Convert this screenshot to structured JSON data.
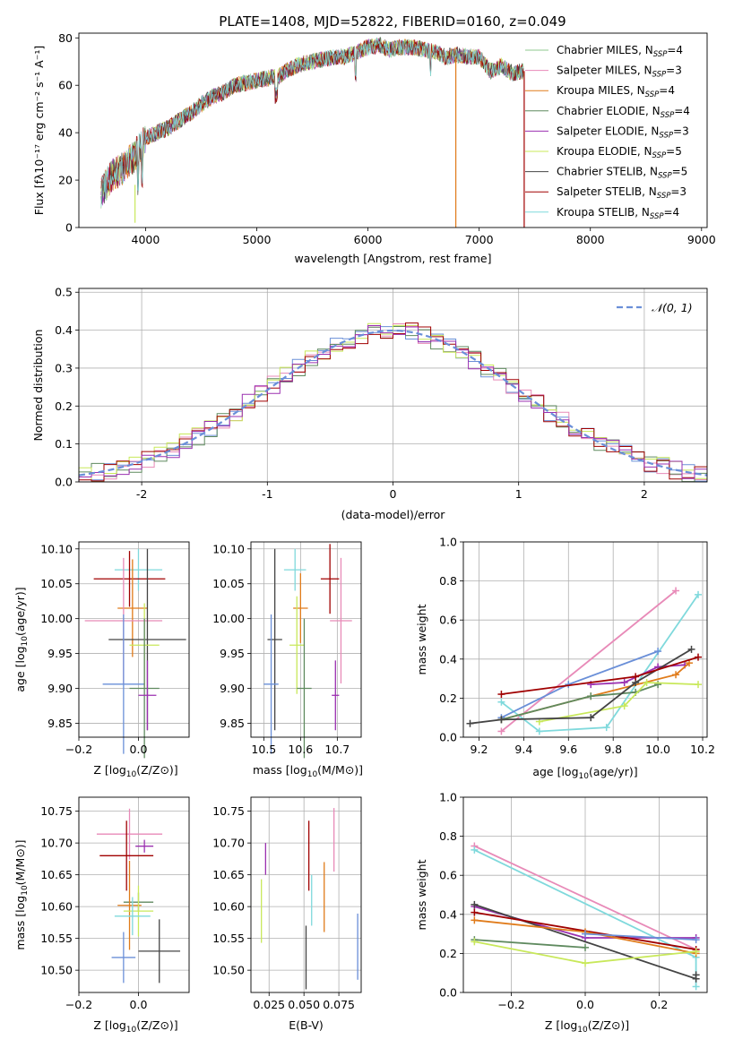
{
  "figure": {
    "title": "PLATE=1408, MJD=52822, FIBERID=0160, z=0.049",
    "series_colors": [
      "#8fc98f",
      "#e88ab8",
      "#e07b1a",
      "#5f8a5f",
      "#9b30b0",
      "#c8e85a",
      "#444444",
      "#a00000",
      "#7fd9dc",
      "#6a8fd8"
    ]
  },
  "chart_data": [
    {
      "id": "spectrum",
      "type": "line",
      "title": "PLATE=1408, MJD=52822, FIBERID=0160, z=0.049",
      "xlabel": "wavelength [Angstrom, rest frame]",
      "ylabel": "Flux [fλ10⁻¹⁷ erg cm⁻² s⁻¹ A⁻¹]",
      "xlim": [
        3400,
        9050
      ],
      "ylim": [
        0,
        82
      ],
      "xticks": [
        4000,
        5000,
        6000,
        7000,
        8000,
        9000
      ],
      "yticks": [
        0,
        20,
        40,
        60,
        80
      ],
      "grid": false,
      "legend_position": "top-right",
      "x": [
        3600,
        3700,
        3800,
        3900,
        4000,
        4100,
        4200,
        4300,
        4400,
        4500,
        4600,
        4700,
        4800,
        4900,
        5000,
        5100,
        5200,
        5300,
        5400,
        5500,
        5600,
        5700,
        5800,
        5900,
        6000,
        6100,
        6200,
        6300,
        6400,
        6500,
        6600,
        6700,
        6800,
        6900,
        7000,
        7100,
        7200,
        7300,
        7400
      ],
      "values": [
        15,
        22,
        25,
        30,
        38,
        40,
        42,
        45,
        48,
        52,
        55,
        57,
        60,
        61,
        62,
        63,
        64,
        67,
        69,
        70,
        71,
        72,
        72,
        74,
        76,
        77,
        75,
        76,
        76,
        75,
        74,
        72,
        73,
        72,
        72,
        66,
        68,
        65,
        66
      ],
      "series": [
        {
          "name": "Chabrier MILES, N_SSP=4",
          "label_main": "Chabrier MILES, N",
          "label_sub": "SSP",
          "label_tail": "=4",
          "color": "#8fc98f"
        },
        {
          "name": "Salpeter MILES, N_SSP=3",
          "label_main": "Salpeter MILES, N",
          "label_sub": "SSP",
          "label_tail": "=3",
          "color": "#e88ab8"
        },
        {
          "name": "Kroupa MILES, N_SSP=4",
          "label_main": "Kroupa MILES, N",
          "label_sub": "SSP",
          "label_tail": "=4",
          "color": "#e07b1a"
        },
        {
          "name": "Chabrier ELODIE, N_SSP=4",
          "label_main": "Chabrier ELODIE, N",
          "label_sub": "SSP",
          "label_tail": "=4",
          "color": "#5f8a5f"
        },
        {
          "name": "Salpeter ELODIE, N_SSP=3",
          "label_main": "Salpeter ELODIE, N",
          "label_sub": "SSP",
          "label_tail": "=3",
          "color": "#9b30b0"
        },
        {
          "name": "Kroupa ELODIE, N_SSP=5",
          "label_main": "Kroupa ELODIE, N",
          "label_sub": "SSP",
          "label_tail": "=5",
          "color": "#c8e85a"
        },
        {
          "name": "Chabrier STELIB, N_SSP=5",
          "label_main": "Chabrier STELIB, N",
          "label_sub": "SSP",
          "label_tail": "=5",
          "color": "#444444"
        },
        {
          "name": "Salpeter STELIB, N_SSP=3",
          "label_main": "Salpeter STELIB, N",
          "label_sub": "SSP",
          "label_tail": "=3",
          "color": "#a00000"
        },
        {
          "name": "Kroupa STELIB, N_SSP=4",
          "label_main": "Kroupa STELIB, N",
          "label_sub": "SSP",
          "label_tail": "=4",
          "color": "#7fd9dc"
        }
      ]
    },
    {
      "id": "residuals",
      "type": "area",
      "xlabel": "(data-model)/error",
      "ylabel": "Normed distribution",
      "xlim": [
        -2.5,
        2.5
      ],
      "ylim": [
        0,
        0.51
      ],
      "xticks": [
        -2,
        -1,
        0,
        1,
        2
      ],
      "yticks": [
        0.0,
        0.1,
        0.2,
        0.3,
        0.4,
        0.5
      ],
      "grid": true,
      "legend_position": "top-right",
      "reference": {
        "name": "N(0,1)",
        "label": "𝒩(0, 1)",
        "mean": 0,
        "sigma": 1,
        "color": "#6a8fd8"
      },
      "bin_width": 0.1,
      "series_colors": [
        "#6a8fd8",
        "#e88ab8",
        "#5f8a5f",
        "#c8e85a",
        "#a00000",
        "#9b30b0"
      ]
    },
    {
      "id": "age-vs-Z",
      "type": "scatter",
      "xlabel": "Z [log10(Z/Z⊙)]",
      "ylabel": "age [log10(age/yr)]",
      "xlim": [
        -0.2,
        0.17
      ],
      "ylim": [
        9.83,
        10.11
      ],
      "xticks": [
        -0.2,
        0.0
      ],
      "yticks": [
        9.85,
        9.9,
        9.95,
        10.0,
        10.05,
        10.1
      ],
      "grid": true,
      "points": [
        {
          "x": 0.0,
          "y": 10.07,
          "xerr": 0.08,
          "yerr": 0.03,
          "color": "#7fd9dc"
        },
        {
          "x": -0.03,
          "y": 10.057,
          "xerr": 0.12,
          "yerr": 0.04,
          "color": "#a00000"
        },
        {
          "x": -0.02,
          "y": 10.015,
          "xerr": 0.05,
          "yerr": 0.07,
          "color": "#e07b1a"
        },
        {
          "x": -0.05,
          "y": 9.997,
          "xerr": 0.13,
          "yerr": 0.09,
          "color": "#e88ab8"
        },
        {
          "x": 0.03,
          "y": 9.97,
          "xerr": 0.13,
          "yerr": 0.13,
          "color": "#444444"
        },
        {
          "x": 0.02,
          "y": 9.962,
          "xerr": 0.05,
          "yerr": 0.06,
          "color": "#c8e85a"
        },
        {
          "x": -0.05,
          "y": 9.906,
          "xerr": 0.07,
          "yerr": 0.1,
          "color": "#6a8fd8"
        },
        {
          "x": 0.02,
          "y": 9.9,
          "xerr": 0.05,
          "yerr": 0.1,
          "color": "#5f8a5f"
        },
        {
          "x": 0.03,
          "y": 9.89,
          "xerr": 0.03,
          "yerr": 0.05,
          "color": "#9b30b0"
        }
      ]
    },
    {
      "id": "age-vs-mass",
      "type": "scatter",
      "xlabel": "mass [log10(M/M⊙)]",
      "ylabel": "",
      "xlim": [
        10.465,
        10.765
      ],
      "ylim": [
        9.83,
        10.11
      ],
      "xticks": [
        10.5,
        10.6,
        10.7
      ],
      "yticks": [
        9.85,
        9.9,
        9.95,
        10.0,
        10.05,
        10.1
      ],
      "grid": true,
      "points": [
        {
          "x": 10.585,
          "y": 10.07,
          "xerr": 0.03,
          "yerr": 0.03,
          "color": "#7fd9dc"
        },
        {
          "x": 10.68,
          "y": 10.057,
          "xerr": 0.025,
          "yerr": 0.05,
          "color": "#a00000"
        },
        {
          "x": 10.6,
          "y": 10.015,
          "xerr": 0.02,
          "yerr": 0.05,
          "color": "#e07b1a"
        },
        {
          "x": 10.71,
          "y": 9.997,
          "xerr": 0.03,
          "yerr": 0.09,
          "color": "#e88ab8"
        },
        {
          "x": 10.53,
          "y": 9.97,
          "xerr": 0.02,
          "yerr": 0.13,
          "color": "#444444"
        },
        {
          "x": 10.59,
          "y": 9.962,
          "xerr": 0.02,
          "yerr": 0.07,
          "color": "#c8e85a"
        },
        {
          "x": 10.52,
          "y": 9.906,
          "xerr": 0.02,
          "yerr": 0.1,
          "color": "#6a8fd8"
        },
        {
          "x": 10.61,
          "y": 9.9,
          "xerr": 0.02,
          "yerr": 0.1,
          "color": "#5f8a5f"
        },
        {
          "x": 10.695,
          "y": 9.89,
          "xerr": 0.01,
          "yerr": 0.05,
          "color": "#9b30b0"
        }
      ]
    },
    {
      "id": "massweight-vs-age",
      "type": "line",
      "xlabel": "age [log10(age/yr)]",
      "ylabel": "mass weight",
      "xlim": [
        9.13,
        10.22
      ],
      "ylim": [
        0.0,
        1.0
      ],
      "xticks": [
        9.2,
        9.4,
        9.6,
        9.8,
        10.0,
        10.2
      ],
      "yticks": [
        0.0,
        0.2,
        0.4,
        0.6,
        0.8,
        1.0
      ],
      "grid": true,
      "series": [
        {
          "color": "#e88ab8",
          "x": [
            9.3,
            10.08
          ],
          "y": [
            0.03,
            0.75
          ]
        },
        {
          "color": "#7fd9dc",
          "x": [
            9.3,
            9.47,
            9.77,
            10.18
          ],
          "y": [
            0.18,
            0.03,
            0.05,
            0.73
          ]
        },
        {
          "color": "#6a8fd8",
          "x": [
            9.3,
            9.6,
            10.0
          ],
          "y": [
            0.1,
            0.27,
            0.44
          ]
        },
        {
          "color": "#9b30b0",
          "x": [
            9.7,
            9.85,
            10.0,
            10.12
          ],
          "y": [
            0.27,
            0.28,
            0.36,
            0.37
          ]
        },
        {
          "color": "#e07b1a",
          "x": [
            9.3,
            9.7,
            10.08,
            10.14
          ],
          "y": [
            0.09,
            0.21,
            0.32,
            0.38
          ]
        },
        {
          "color": "#5f8a5f",
          "x": [
            9.3,
            9.7,
            9.9,
            10.0
          ],
          "y": [
            0.09,
            0.21,
            0.23,
            0.27
          ]
        },
        {
          "color": "#c8e85a",
          "x": [
            9.47,
            9.85,
            9.95,
            10.18
          ],
          "y": [
            0.08,
            0.16,
            0.28,
            0.27
          ]
        },
        {
          "color": "#444444",
          "x": [
            9.16,
            9.3,
            9.7,
            9.9,
            10.15
          ],
          "y": [
            0.07,
            0.09,
            0.1,
            0.28,
            0.45
          ]
        },
        {
          "color": "#a00000",
          "x": [
            9.3,
            9.9,
            10.18
          ],
          "y": [
            0.22,
            0.31,
            0.41
          ]
        }
      ]
    },
    {
      "id": "mass-vs-Z",
      "type": "scatter",
      "xlabel": "Z [log10(Z/Z⊙)]",
      "ylabel": "mass [log10(M/M⊙)]",
      "xlim": [
        -0.2,
        0.17
      ],
      "ylim": [
        10.465,
        10.772
      ],
      "xticks": [
        -0.2,
        0.0
      ],
      "yticks": [
        10.5,
        10.55,
        10.6,
        10.65,
        10.7,
        10.75
      ],
      "grid": true,
      "points": [
        {
          "x": -0.03,
          "y": 10.714,
          "xerr": 0.11,
          "yerr": 0.04,
          "color": "#e88ab8"
        },
        {
          "x": 0.02,
          "y": 10.695,
          "xerr": 0.03,
          "yerr": 0.01,
          "color": "#9b30b0"
        },
        {
          "x": -0.04,
          "y": 10.68,
          "xerr": 0.09,
          "yerr": 0.055,
          "color": "#a00000"
        },
        {
          "x": 0.0,
          "y": 10.607,
          "xerr": 0.05,
          "yerr": 0.015,
          "color": "#5f8a5f"
        },
        {
          "x": -0.03,
          "y": 10.602,
          "xerr": 0.04,
          "yerr": 0.07,
          "color": "#e07b1a"
        },
        {
          "x": 0.0,
          "y": 10.593,
          "xerr": 0.05,
          "yerr": 0.04,
          "color": "#c8e85a"
        },
        {
          "x": -0.02,
          "y": 10.585,
          "xerr": 0.06,
          "yerr": 0.03,
          "color": "#7fd9dc"
        },
        {
          "x": 0.07,
          "y": 10.53,
          "xerr": 0.07,
          "yerr": 0.05,
          "color": "#444444"
        },
        {
          "x": -0.05,
          "y": 10.52,
          "xerr": 0.04,
          "yerr": 0.04,
          "color": "#6a8fd8"
        }
      ]
    },
    {
      "id": "mass-vs-EBV",
      "type": "scatter",
      "xlabel": "E(B-V)",
      "ylabel": "",
      "xlim": [
        0.012,
        0.091
      ],
      "ylim": [
        10.465,
        10.772
      ],
      "xticks": [
        0.025,
        0.05,
        0.075
      ],
      "xtick_labels": [
        "0.025",
        "0.050",
        "0.075"
      ],
      "yticks": [
        10.5,
        10.55,
        10.6,
        10.65,
        10.7,
        10.75
      ],
      "grid": true,
      "points": [
        {
          "x": 0.0225,
          "y": 10.675,
          "yerr": 0.025,
          "color": "#9b30b0"
        },
        {
          "x": 0.0195,
          "y": 10.593,
          "yerr": 0.05,
          "color": "#c8e85a"
        },
        {
          "x": 0.0535,
          "y": 10.68,
          "yerr": 0.055,
          "color": "#a00000"
        },
        {
          "x": 0.0555,
          "y": 10.61,
          "yerr": 0.04,
          "color": "#7fd9dc"
        },
        {
          "x": 0.0515,
          "y": 10.52,
          "yerr": 0.05,
          "color": "#444444"
        },
        {
          "x": 0.0645,
          "y": 10.615,
          "yerr": 0.055,
          "color": "#e07b1a"
        },
        {
          "x": 0.0715,
          "y": 10.705,
          "yerr": 0.05,
          "color": "#e88ab8"
        },
        {
          "x": 0.0885,
          "y": 10.537,
          "yerr": 0.052,
          "color": "#6a8fd8"
        }
      ]
    },
    {
      "id": "massweight-vs-Z",
      "type": "line",
      "xlabel": "Z [log10(Z/Z⊙)]",
      "ylabel": "mass weight",
      "xlim": [
        -0.33,
        0.33
      ],
      "ylim": [
        0.0,
        1.0
      ],
      "xticks": [
        -0.2,
        0.0,
        0.2
      ],
      "yticks": [
        0.0,
        0.2,
        0.4,
        0.6,
        0.8,
        1.0
      ],
      "grid": true,
      "series": [
        {
          "color": "#e88ab8",
          "x": [
            -0.3,
            0.3
          ],
          "y": [
            0.75,
            0.22
          ]
        },
        {
          "color": "#7fd9dc",
          "x": [
            -0.3,
            0.3,
            0.3
          ],
          "y": [
            0.73,
            0.18,
            0.03
          ]
        },
        {
          "color": "#9b30b0",
          "x": [
            -0.3,
            0.0,
            0.3
          ],
          "y": [
            0.44,
            0.28,
            0.28
          ]
        },
        {
          "color": "#444444",
          "x": [
            -0.3,
            0.3,
            0.3
          ],
          "y": [
            0.45,
            0.07,
            0.09
          ]
        },
        {
          "color": "#a00000",
          "x": [
            -0.3,
            0.3
          ],
          "y": [
            0.41,
            0.22
          ]
        },
        {
          "color": "#e07b1a",
          "x": [
            -0.3,
            0.0,
            0.3
          ],
          "y": [
            0.37,
            0.31,
            0.2
          ]
        },
        {
          "color": "#6a8fd8",
          "x": [
            0.0,
            0.3
          ],
          "y": [
            0.3,
            0.27
          ]
        },
        {
          "color": "#5f8a5f",
          "x": [
            -0.3,
            0.0
          ],
          "y": [
            0.27,
            0.23
          ]
        },
        {
          "color": "#c8e85a",
          "x": [
            -0.3,
            0.0,
            0.3
          ],
          "y": [
            0.26,
            0.15,
            0.21
          ]
        }
      ]
    }
  ]
}
